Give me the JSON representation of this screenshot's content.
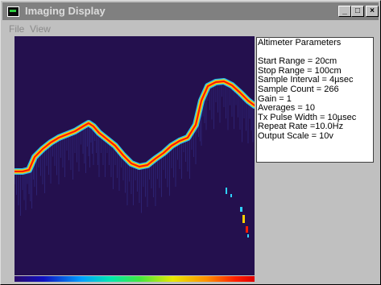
{
  "window": {
    "title": "Imaging Display",
    "minimize_label": "_",
    "maximize_label": "□",
    "close_label": "×"
  },
  "menu": {
    "items": [
      "File",
      "View"
    ]
  },
  "parameters": {
    "heading": "Altimeter Parameters",
    "lines": [
      "",
      "Start Range = 20cm",
      "Stop Range = 100cm",
      "Sample Interval = 4µsec",
      "Sample Count = 266",
      "Gain = 1",
      "Averages = 10",
      "Tx Pulse Width = 10µsec",
      "Repeat Rate =10.0Hz",
      "Output Scale = 10v"
    ]
  },
  "colors": {
    "title_bar": "#808080",
    "image_background": "#24104e",
    "echo_core": "#ff1a00",
    "echo_mid": "#ffd200",
    "echo_edge": "#2fd2ff"
  }
}
